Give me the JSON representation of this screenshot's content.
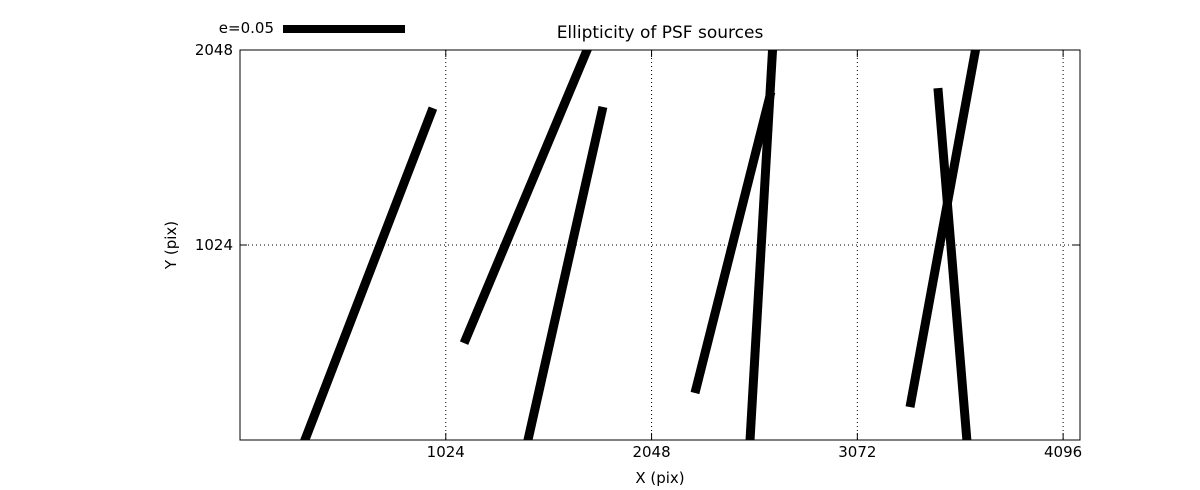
{
  "title": "Ellipticity of PSF sources",
  "legend": {
    "label": "e=0.05"
  },
  "axes": {
    "xlabel": "X (pix)",
    "ylabel": "Y (pix)",
    "x_ticks": [
      {
        "value": 1024,
        "label": "1024"
      },
      {
        "value": 2048,
        "label": "2048"
      },
      {
        "value": 3072,
        "label": "3072"
      },
      {
        "value": 4096,
        "label": "4096"
      }
    ],
    "y_ticks": [
      {
        "value": 1024,
        "label": "1024"
      },
      {
        "value": 2048,
        "label": "2048"
      }
    ],
    "xlim": [
      0,
      4180
    ],
    "ylim": [
      0,
      2048
    ],
    "grid": "dotted"
  },
  "colors": {
    "line": "#000000",
    "background": "#ffffff",
    "grid": "#000000"
  },
  "chart_data": {
    "type": "line",
    "subtype": "ellipticity-whisker-segments",
    "title": "Ellipticity of PSF sources",
    "xlabel": "X (pix)",
    "ylabel": "Y (pix)",
    "xlim": [
      0,
      4180
    ],
    "ylim": [
      0,
      2048
    ],
    "x_tick_values": [
      1024,
      2048,
      3072,
      4096
    ],
    "y_tick_values": [
      1024,
      2048
    ],
    "grid": true,
    "grid_style": "dotted",
    "legend": {
      "label": "e=0.05"
    },
    "stroke_width_px": 9,
    "segments": [
      {
        "x1": 323,
        "y1": 0,
        "x2": 960,
        "y2": 1743
      },
      {
        "x1": 1115,
        "y1": 509,
        "x2": 1727,
        "y2": 2048
      },
      {
        "x1": 1433,
        "y1": 0,
        "x2": 1806,
        "y2": 1749
      },
      {
        "x1": 2264,
        "y1": 247,
        "x2": 2642,
        "y2": 1827
      },
      {
        "x1": 2538,
        "y1": 0,
        "x2": 2650,
        "y2": 2048
      },
      {
        "x1": 3334,
        "y1": 173,
        "x2": 3660,
        "y2": 2048
      },
      {
        "x1": 3473,
        "y1": 1848,
        "x2": 3617,
        "y2": 0
      }
    ]
  }
}
